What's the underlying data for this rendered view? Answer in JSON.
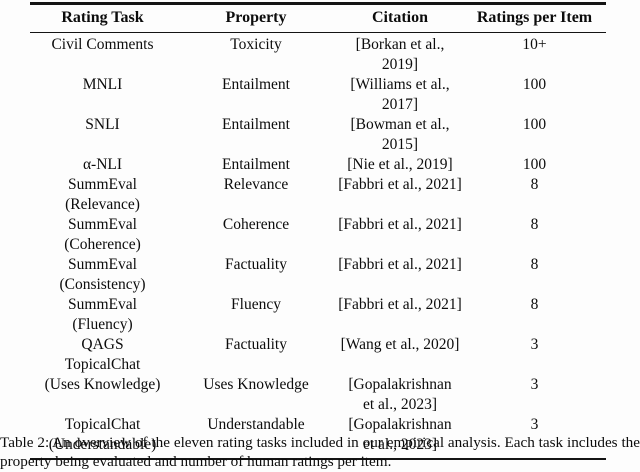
{
  "table": {
    "headers": [
      "Rating Task",
      "Property",
      "Citation",
      "Ratings per Item"
    ],
    "rows": [
      {
        "task": "Civil Comments",
        "property": "Toxicity",
        "citation": "[Borkan et al., 2019]",
        "ratings": "10+"
      },
      {
        "task": "MNLI",
        "property": "Entailment",
        "citation": "[Williams et al.,\n2017]",
        "ratings": "100"
      },
      {
        "task": "SNLI",
        "property": "Entailment",
        "citation": "[Bowman et al.,\n2015]",
        "ratings": "100"
      },
      {
        "task": "α-NLI",
        "property": "Entailment",
        "citation": "[Nie et al., 2019]",
        "ratings": "100"
      },
      {
        "task": "SummEval\n(Relevance)",
        "property": "Relevance",
        "citation": "[Fabbri et al., 2021]",
        "ratings": "8"
      },
      {
        "task": "SummEval\n(Coherence)",
        "property": "Coherence",
        "citation": "[Fabbri et al., 2021]",
        "ratings": "8"
      },
      {
        "task": "SummEval\n(Consistency)",
        "property": "Factuality",
        "citation": "[Fabbri et al., 2021]",
        "ratings": "8"
      },
      {
        "task": "SummEval\n(Fluency)",
        "property": "Fluency",
        "citation": "[Fabbri et al., 2021]",
        "ratings": "8"
      },
      {
        "task": "QAGS",
        "property": "Factuality",
        "citation": "[Wang et al., 2020]",
        "ratings": "3"
      },
      {
        "task": "TopicalChat\n(Uses Knowledge)",
        "property": "Uses Knowledge",
        "citation": "[Gopalakrishnan\net al., 2023]",
        "ratings": "3"
      },
      {
        "task": "TopicalChat\n(Understandable)",
        "property": "Understandable",
        "citation": "[Gopalakrishnan\net al., 2023]",
        "ratings": "3"
      }
    ]
  },
  "caption": "Table 2: An overview of the eleven rating tasks included in our empirical analysis. Each task includes the property being evaluated and number of human ratings per item."
}
